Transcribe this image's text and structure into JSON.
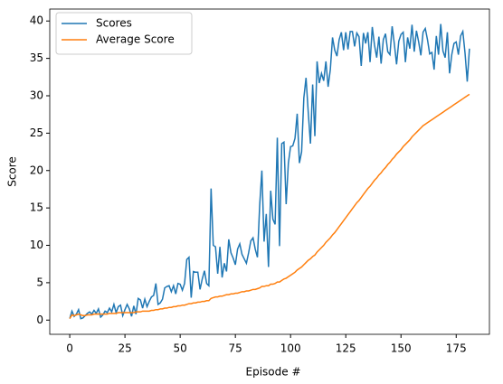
{
  "chart_data": {
    "type": "line",
    "xlabel": "Episode #",
    "ylabel": "Score",
    "x": [
      0,
      1,
      2,
      3,
      4,
      5,
      6,
      7,
      8,
      9,
      10,
      11,
      12,
      13,
      14,
      15,
      16,
      17,
      18,
      19,
      20,
      21,
      22,
      23,
      24,
      25,
      26,
      27,
      28,
      29,
      30,
      31,
      32,
      33,
      34,
      35,
      36,
      37,
      38,
      39,
      40,
      41,
      42,
      43,
      44,
      45,
      46,
      47,
      48,
      49,
      50,
      51,
      52,
      53,
      54,
      55,
      56,
      57,
      58,
      59,
      60,
      61,
      62,
      63,
      64,
      65,
      66,
      67,
      68,
      69,
      70,
      71,
      72,
      73,
      74,
      75,
      76,
      77,
      78,
      79,
      80,
      81,
      82,
      83,
      84,
      85,
      86,
      87,
      88,
      89,
      90,
      91,
      92,
      93,
      94,
      95,
      96,
      97,
      98,
      99,
      100,
      101,
      102,
      103,
      104,
      105,
      106,
      107,
      108,
      109,
      110,
      111,
      112,
      113,
      114,
      115,
      116,
      117,
      118,
      119,
      120,
      121,
      122,
      123,
      124,
      125,
      126,
      127,
      128,
      129,
      130,
      131,
      132,
      133,
      134,
      135,
      136,
      137,
      138,
      139,
      140,
      141,
      142,
      143,
      144,
      145,
      146,
      147,
      148,
      149,
      150,
      151,
      152,
      153,
      154,
      155,
      156,
      157,
      158,
      159,
      160,
      161,
      162,
      163,
      164,
      165,
      166,
      167,
      168,
      169,
      170,
      171,
      172,
      173,
      174,
      175,
      176,
      177,
      178,
      179,
      180,
      181
    ],
    "series": [
      {
        "name": "Scores",
        "color": "#1f77b4",
        "values": [
          0.2,
          1.2,
          0.5,
          0.8,
          1.4,
          0.2,
          0.3,
          0.6,
          0.9,
          1.1,
          0.8,
          1.3,
          0.9,
          1.5,
          0.4,
          0.7,
          1.2,
          1.0,
          1.6,
          1.1,
          2.1,
          1.0,
          1.8,
          2.0,
          0.6,
          1.4,
          2.1,
          1.5,
          0.5,
          1.9,
          0.8,
          2.9,
          2.7,
          1.6,
          2.8,
          1.8,
          2.5,
          3.1,
          3.3,
          4.9,
          2.1,
          2.3,
          2.8,
          4.3,
          4.5,
          4.6,
          3.8,
          4.6,
          3.5,
          4.9,
          4.8,
          4.0,
          4.9,
          8.1,
          8.4,
          3.0,
          6.5,
          6.4,
          6.4,
          4.1,
          5.5,
          6.6,
          4.9,
          4.6,
          17.6,
          10.0,
          9.8,
          6.2,
          9.8,
          5.7,
          7.6,
          6.5,
          10.8,
          9.0,
          8.3,
          7.4,
          9.5,
          10.2,
          8.8,
          8.2,
          7.6,
          9.0,
          10.6,
          11.0,
          9.5,
          8.4,
          15.3,
          20.0,
          10.5,
          14.2,
          7.1,
          17.3,
          13.5,
          12.8,
          24.4,
          9.9,
          23.6,
          23.8,
          15.5,
          21.0,
          23.2,
          23.3,
          24.3,
          27.6,
          21.0,
          22.5,
          29.7,
          32.4,
          27.8,
          23.6,
          31.5,
          24.6,
          34.6,
          31.7,
          33.0,
          32.0,
          34.6,
          31.2,
          33.5,
          37.8,
          36.1,
          35.3,
          37.5,
          38.5,
          36.1,
          38.5,
          36.2,
          38.6,
          38.6,
          36.6,
          38.4,
          37.9,
          34.0,
          38.4,
          37.0,
          38.5,
          34.5,
          39.2,
          36.8,
          35.1,
          37.9,
          34.3,
          37.5,
          38.3,
          35.9,
          35.5,
          39.3,
          36.9,
          34.2,
          37.3,
          38.2,
          38.5,
          34.5,
          37.8,
          36.3,
          39.5,
          35.9,
          38.7,
          37.2,
          35.4,
          38.5,
          39.0,
          37.5,
          35.6,
          35.8,
          33.5,
          38.0,
          35.5,
          39.6,
          36.0,
          35.1,
          38.5,
          33.0,
          35.5,
          37.0,
          37.2,
          35.5,
          38.0,
          38.6,
          35.7,
          31.9,
          36.3
        ]
      },
      {
        "name": "Average Score",
        "color": "#ff7f0e",
        "values": [
          0.2,
          0.7,
          0.6,
          0.7,
          0.8,
          0.7,
          0.6,
          0.6,
          0.7,
          0.7,
          0.7,
          0.8,
          0.8,
          0.8,
          0.8,
          0.8,
          0.8,
          0.8,
          0.9,
          0.9,
          0.9,
          0.9,
          1.0,
          1.0,
          1.0,
          1.0,
          1.0,
          1.0,
          1.0,
          1.0,
          1.1,
          1.1,
          1.1,
          1.2,
          1.2,
          1.2,
          1.2,
          1.3,
          1.3,
          1.4,
          1.4,
          1.5,
          1.5,
          1.6,
          1.6,
          1.7,
          1.7,
          1.8,
          1.8,
          1.9,
          1.9,
          2.0,
          2.0,
          2.1,
          2.2,
          2.2,
          2.3,
          2.3,
          2.4,
          2.4,
          2.5,
          2.5,
          2.6,
          2.6,
          2.9,
          3.0,
          3.1,
          3.1,
          3.2,
          3.2,
          3.3,
          3.4,
          3.4,
          3.5,
          3.5,
          3.6,
          3.6,
          3.7,
          3.8,
          3.8,
          3.9,
          3.9,
          4.0,
          4.1,
          4.1,
          4.2,
          4.3,
          4.5,
          4.5,
          4.6,
          4.6,
          4.8,
          4.8,
          4.9,
          5.1,
          5.1,
          5.3,
          5.5,
          5.6,
          5.8,
          6.0,
          6.2,
          6.4,
          6.7,
          6.9,
          7.1,
          7.4,
          7.7,
          8.0,
          8.2,
          8.5,
          8.7,
          9.1,
          9.4,
          9.7,
          10.0,
          10.4,
          10.7,
          11.0,
          11.4,
          11.7,
          12.1,
          12.5,
          12.9,
          13.3,
          13.7,
          14.1,
          14.5,
          14.9,
          15.3,
          15.7,
          16.0,
          16.4,
          16.8,
          17.2,
          17.6,
          17.9,
          18.3,
          18.7,
          19.0,
          19.4,
          19.7,
          20.1,
          20.4,
          20.8,
          21.1,
          21.5,
          21.8,
          22.2,
          22.5,
          22.8,
          23.2,
          23.5,
          23.8,
          24.1,
          24.5,
          24.8,
          25.1,
          25.4,
          25.7,
          26.0,
          26.2,
          26.4,
          26.6,
          26.8,
          27.0,
          27.2,
          27.4,
          27.6,
          27.8,
          28.0,
          28.2,
          28.4,
          28.6,
          28.8,
          29.0,
          29.2,
          29.4,
          29.6,
          29.8,
          30.0,
          30.2
        ]
      }
    ],
    "xlim": [
      -9.05,
      190.05
    ],
    "ylim": [
      -1.9,
      41.6
    ],
    "xticks": [
      0,
      25,
      50,
      75,
      100,
      125,
      150,
      175
    ],
    "yticks": [
      0,
      5,
      10,
      15,
      20,
      25,
      30,
      35,
      40
    ],
    "legend": "upper left"
  }
}
